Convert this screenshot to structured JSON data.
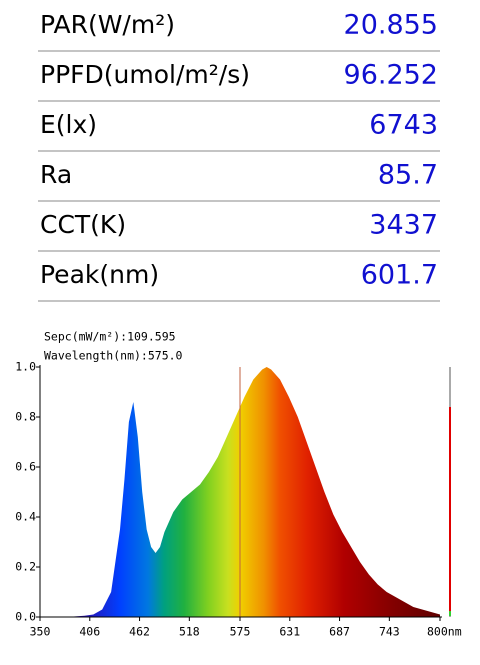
{
  "measurements": [
    {
      "label": "PAR(W/m²)",
      "value": "20.855"
    },
    {
      "label": "PPFD(umol/m²/s)",
      "value": "96.252"
    },
    {
      "label": "E(lx)",
      "value": "6743"
    },
    {
      "label": "Ra",
      "value": "85.7"
    },
    {
      "label": "CCT(K)",
      "value": "3437"
    },
    {
      "label": "Peak(nm)",
      "value": "601.7"
    }
  ],
  "chart_data": {
    "type": "area",
    "annotations": [
      "Sepc(mW/m²):109.595",
      "Wavelength(nm):575.0"
    ],
    "cursor_wavelength": 575.0,
    "x": [
      350,
      380,
      400,
      410,
      420,
      430,
      440,
      445,
      450,
      455,
      460,
      465,
      470,
      475,
      480,
      485,
      490,
      500,
      510,
      520,
      530,
      540,
      550,
      560,
      570,
      580,
      590,
      600,
      605,
      610,
      620,
      630,
      640,
      650,
      660,
      670,
      680,
      690,
      700,
      710,
      720,
      730,
      740,
      750,
      760,
      770,
      780,
      790,
      800
    ],
    "values": [
      0,
      0,
      0.005,
      0.01,
      0.03,
      0.1,
      0.35,
      0.55,
      0.78,
      0.86,
      0.72,
      0.5,
      0.35,
      0.28,
      0.256,
      0.28,
      0.34,
      0.42,
      0.47,
      0.5,
      0.53,
      0.58,
      0.64,
      0.72,
      0.8,
      0.88,
      0.95,
      0.99,
      1.0,
      0.99,
      0.95,
      0.88,
      0.8,
      0.7,
      0.6,
      0.5,
      0.41,
      0.34,
      0.28,
      0.22,
      0.17,
      0.13,
      0.1,
      0.08,
      0.06,
      0.04,
      0.03,
      0.02,
      0.01
    ],
    "xlim": [
      350,
      800
    ],
    "ylim": [
      0,
      1.0
    ],
    "xticks": [
      350,
      406,
      462,
      518,
      575,
      631,
      687,
      743,
      {
        "value": 800,
        "label": "800nm"
      }
    ],
    "yticks": [
      {
        "value": 0,
        "label": "0.0"
      },
      {
        "value": 0.2,
        "label": "0.2"
      },
      {
        "value": 0.4,
        "label": "0.4"
      },
      {
        "value": 0.6,
        "label": "0.6"
      },
      {
        "value": 0.8,
        "label": "0.8"
      },
      {
        "value": 1.0,
        "label": "1.0"
      }
    ]
  }
}
